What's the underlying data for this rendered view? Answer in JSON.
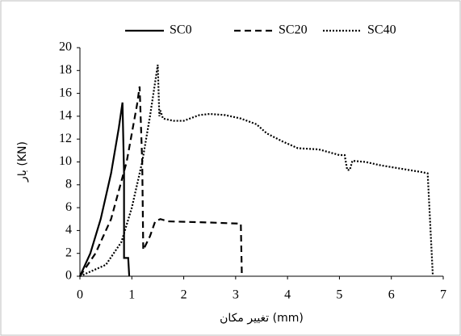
{
  "chart_data": {
    "type": "line",
    "x_label": "تغییر مکان (mm)",
    "y_label": "بار (KN)",
    "xlim": [
      0,
      7
    ],
    "xticks": [
      0,
      1,
      2,
      3,
      4,
      5,
      6,
      7
    ],
    "ylim": [
      0,
      20
    ],
    "yticks": [
      0,
      2,
      4,
      6,
      8,
      10,
      12,
      14,
      16,
      18,
      20
    ],
    "grid": false,
    "legend": "top",
    "series": [
      {
        "name": "SC0",
        "color": "#000000",
        "style": "solid",
        "x": [
          0,
          0.2,
          0.4,
          0.6,
          0.75,
          0.82,
          0.85,
          0.85,
          0.93,
          0.95
        ],
        "values": [
          0,
          2,
          5,
          9,
          13,
          15.2,
          9,
          1.6,
          1.6,
          0
        ]
      },
      {
        "name": "SC20",
        "color": "#000000",
        "style": "dashed",
        "x": [
          0,
          0.3,
          0.6,
          0.9,
          1.1,
          1.15,
          1.2,
          1.22,
          1.35,
          1.45,
          1.55,
          1.7,
          2.5,
          3.1,
          3.12
        ],
        "values": [
          0,
          2,
          5,
          10,
          15,
          16.6,
          10,
          2.3,
          3.5,
          4.8,
          5,
          4.8,
          4.7,
          4.6,
          0
        ]
      },
      {
        "name": "SC40",
        "color": "#000000",
        "style": "dotted",
        "x": [
          0,
          0.5,
          0.8,
          1.0,
          1.2,
          1.35,
          1.5,
          1.53,
          1.55,
          1.6,
          1.8,
          2,
          2.3,
          2.5,
          2.8,
          3.1,
          3.4,
          3.6,
          3.9,
          4.2,
          4.6,
          5.0,
          5.1,
          5.15,
          5.2,
          5.25,
          5.5,
          5.8,
          6.2,
          6.6,
          6.7,
          6.8
        ],
        "values": [
          0,
          1,
          3,
          6,
          10,
          14,
          18.5,
          14,
          14.5,
          13.8,
          13.6,
          13.6,
          14.1,
          14.2,
          14.1,
          13.8,
          13.3,
          12.5,
          11.8,
          11.2,
          11.1,
          10.6,
          10.6,
          9.3,
          9.3,
          10.1,
          10,
          9.7,
          9.4,
          9.1,
          9.0,
          0
        ]
      }
    ]
  }
}
